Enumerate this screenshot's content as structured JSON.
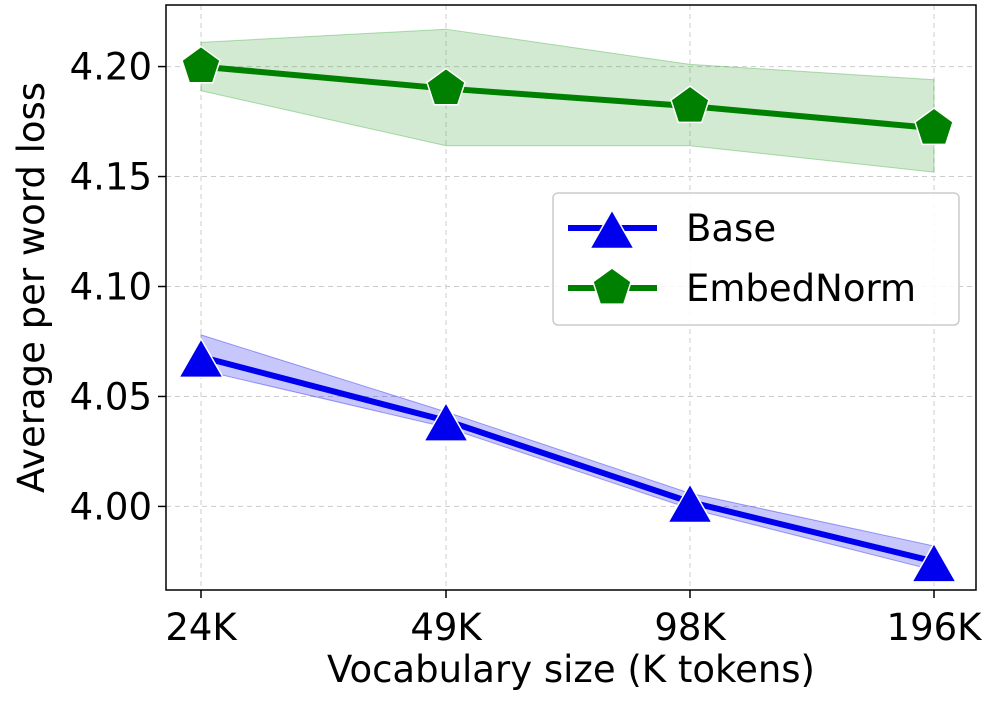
{
  "chart_data": {
    "type": "line",
    "title": "",
    "xlabel": "Vocabulary size (K tokens)",
    "ylabel": "Average per word loss",
    "categories": [
      "24K",
      "49K",
      "98K",
      "196K"
    ],
    "yticks": [
      "4.00",
      "4.05",
      "4.10",
      "4.15",
      "4.20"
    ],
    "ytick_values": [
      4.0,
      4.05,
      4.1,
      4.15,
      4.2
    ],
    "ylim": [
      3.962,
      4.228
    ],
    "grid": true,
    "legend_position": "center-right",
    "series": [
      {
        "name": "Base",
        "values": [
          4.068,
          4.039,
          4.002,
          3.975
        ],
        "lower": [
          4.062,
          4.036,
          3.999,
          3.971
        ],
        "upper": [
          4.078,
          4.043,
          4.006,
          3.982
        ],
        "color": "#0000ee",
        "band_color": "#0000ee",
        "marker": "triangle"
      },
      {
        "name": "EmbedNorm",
        "values": [
          4.2,
          4.19,
          4.182,
          4.172
        ],
        "lower": [
          4.189,
          4.164,
          4.164,
          4.152
        ],
        "upper": [
          4.211,
          4.217,
          4.201,
          4.194
        ],
        "color": "#008000",
        "band_color": "#2ca02c",
        "marker": "pentagon"
      }
    ]
  }
}
